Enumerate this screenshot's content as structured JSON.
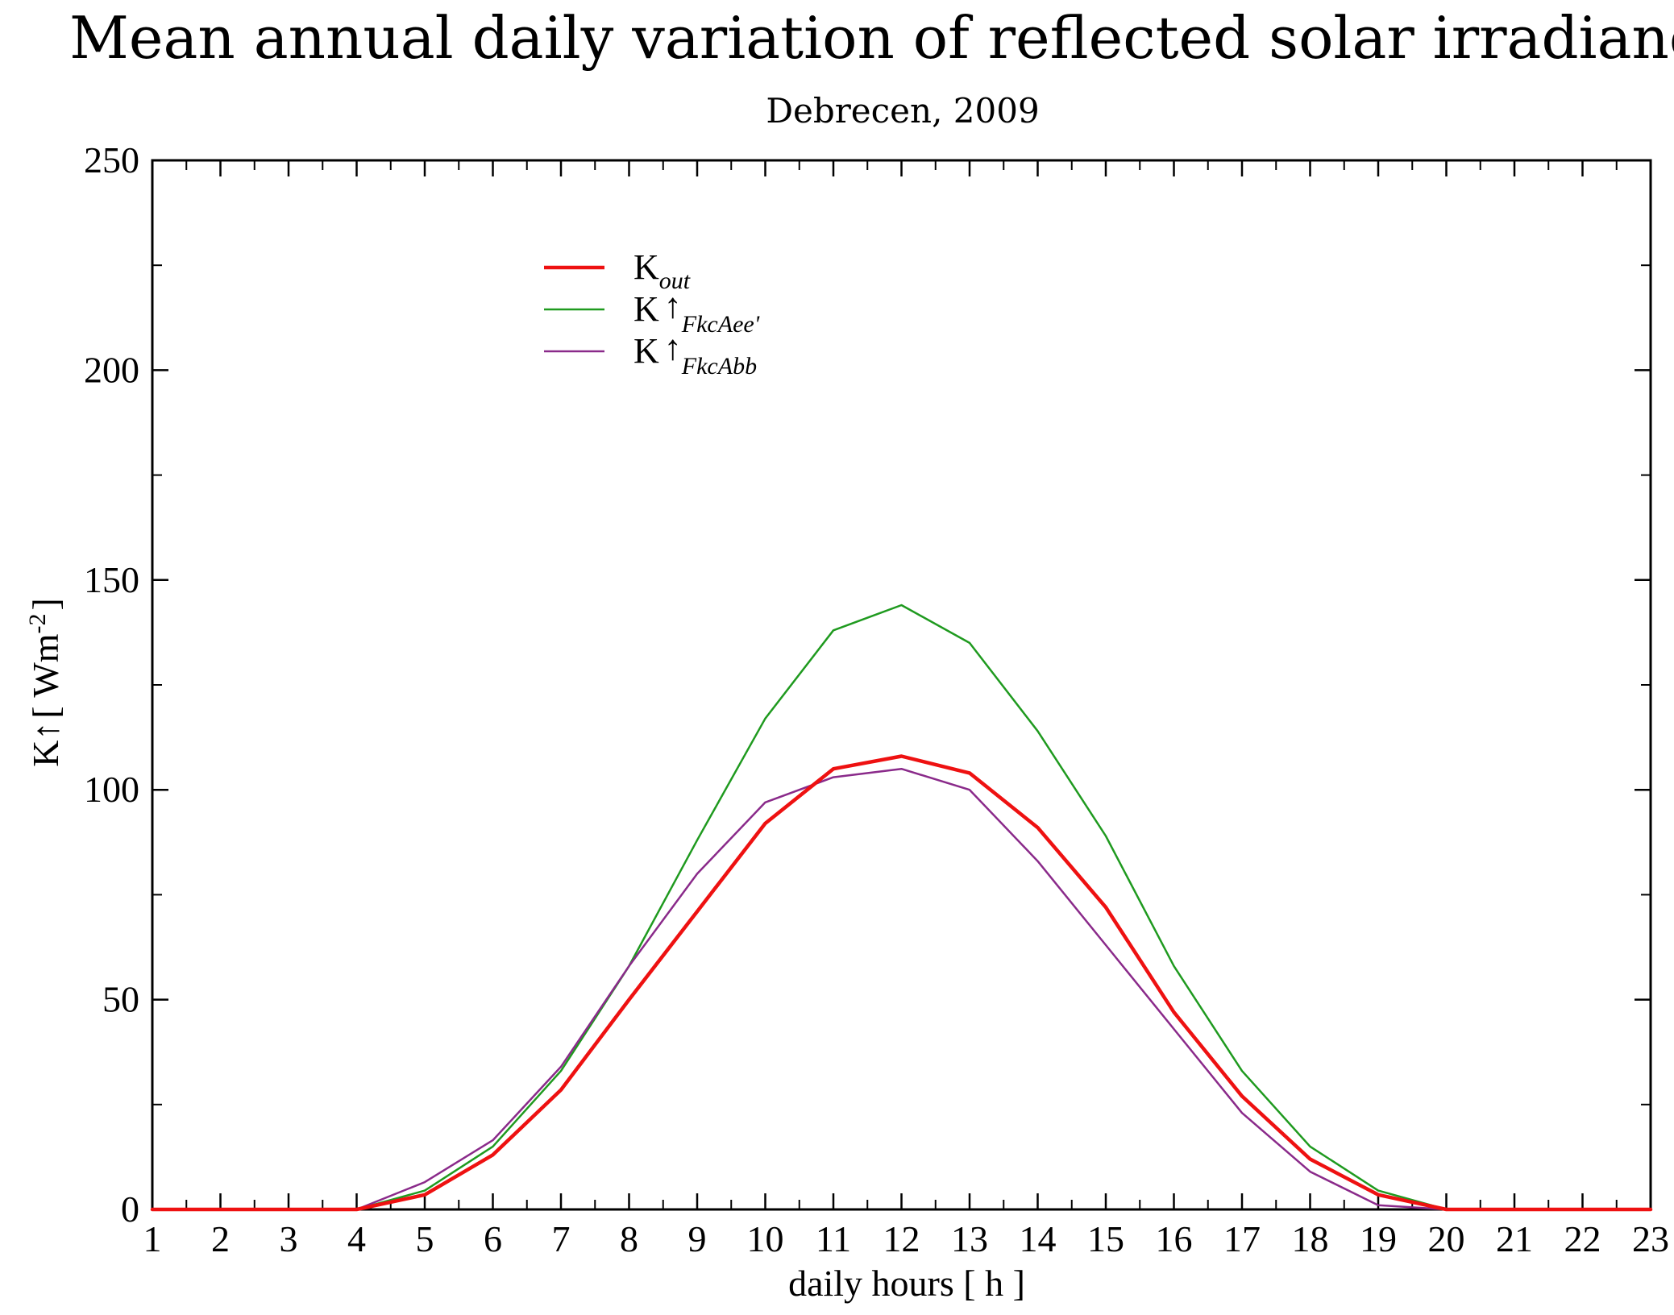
{
  "chart_data": {
    "type": "line",
    "title": "Mean annual daily variation of reflected solar irradiance",
    "subtitle": "Debrecen, 2009",
    "xlabel": "daily hours [ h ]",
    "ylabel": {
      "main": "K",
      "arrow": "↑",
      "bracket_open": "[ Wm",
      "exponent": "-2",
      "bracket_close": "]"
    },
    "xlim": [
      1,
      23
    ],
    "ylim": [
      0,
      250
    ],
    "x_ticks": [
      1,
      2,
      3,
      4,
      5,
      6,
      7,
      8,
      9,
      10,
      11,
      12,
      13,
      14,
      15,
      16,
      17,
      18,
      19,
      20,
      21,
      22,
      23
    ],
    "y_ticks": [
      0,
      50,
      100,
      150,
      200,
      250
    ],
    "y_minor_step": 25,
    "grid": false,
    "legend_placement": "top-left",
    "x": [
      1,
      2,
      3,
      4,
      5,
      6,
      7,
      8,
      9,
      10,
      11,
      12,
      13,
      14,
      15,
      16,
      17,
      18,
      19,
      20,
      21,
      22,
      23
    ],
    "series": [
      {
        "name": "K_out",
        "label_main": "K",
        "label_arrow": "",
        "label_sub": "out",
        "color": "#ee1111",
        "stroke_px": 4.5,
        "values": [
          0,
          0,
          0,
          0,
          3.5,
          13,
          28.5,
          50,
          71,
          92,
          105,
          108,
          104,
          91,
          72,
          47,
          27,
          12,
          3.5,
          0,
          0,
          0,
          0
        ]
      },
      {
        "name": "K↑FkcAee'",
        "label_main": "K",
        "label_arrow": "↑",
        "label_sub": "FkcAee'",
        "color": "#1f9a1f",
        "stroke_px": 2.5,
        "values": [
          0,
          0,
          0,
          0,
          4.5,
          15,
          33,
          58,
          88,
          117,
          138,
          144,
          135,
          114,
          89,
          58,
          33,
          15,
          4.5,
          0,
          0,
          0,
          0
        ]
      },
      {
        "name": "K↑FkcAbb",
        "label_main": "K",
        "label_arrow": "↑",
        "label_sub": "FkcAbb",
        "color": "#8a2a8a",
        "stroke_px": 2.5,
        "values": [
          0,
          0,
          0,
          0,
          6.5,
          16.5,
          34,
          58,
          80,
          97,
          103,
          105,
          100,
          83,
          63,
          43,
          23,
          9,
          1,
          0,
          0,
          0,
          0
        ]
      }
    ]
  }
}
